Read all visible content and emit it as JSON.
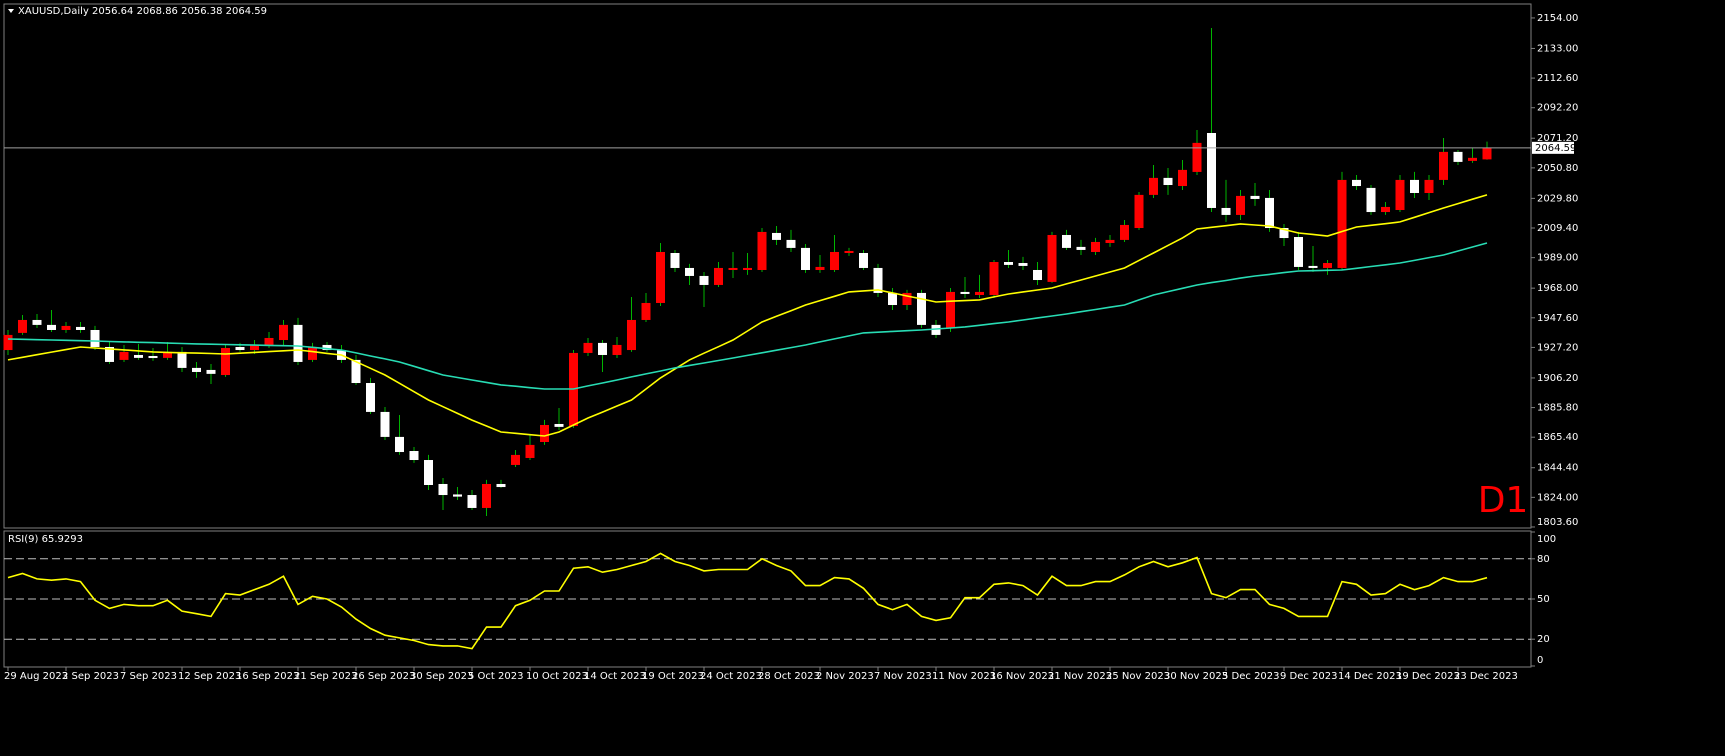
{
  "chart_data": [
    {
      "type": "candlestick",
      "title": "XAUUSD,Daily 2056.64 2068.86 2056.38 2064.59",
      "annotation": "D1",
      "categories": [
        "29 Aug 2023",
        null,
        null,
        null,
        "2 Sep 2023",
        null,
        null,
        null,
        "7 Sep 2023",
        null,
        null,
        null,
        "12 Sep 2023",
        null,
        null,
        null,
        "16 Sep 2023",
        null,
        null,
        null,
        "21 Sep 2023",
        null,
        null,
        null,
        "26 Sep 2023",
        null,
        null,
        null,
        "30 Sep 2023",
        null,
        null,
        null,
        "5 Oct 2023",
        null,
        null,
        null,
        "10 Oct 2023",
        null,
        null,
        null,
        "14 Oct 2023",
        null,
        null,
        null,
        "19 Oct 2023",
        null,
        null,
        null,
        "24 Oct 2023",
        null,
        null,
        null,
        "28 Oct 2023",
        null,
        null,
        null,
        "2 Nov 2023",
        null,
        null,
        null,
        "7 Nov 2023",
        null,
        null,
        null,
        "11 Nov 2023",
        null,
        null,
        null,
        "16 Nov 2023",
        null,
        null,
        null,
        "21 Nov 2023",
        null,
        null,
        null,
        "25 Nov 2023",
        null,
        null,
        null,
        "30 Nov 2023",
        null,
        null,
        null,
        "5 Dec 2023",
        null,
        null,
        null,
        "9 Dec 2023",
        null,
        null,
        null,
        "14 Dec 2023",
        null,
        null,
        null,
        "19 Dec 2023",
        null,
        null,
        null,
        "23 Dec 2023",
        null,
        null
      ],
      "open": [
        1925.4,
        1937.2,
        1946.1,
        1942.7,
        1939.2,
        1941.3,
        1939.2,
        1927.5,
        1918.6,
        1922.0,
        1921.3,
        1920.0,
        1924.1,
        1913.1,
        1911.7,
        1908.2,
        1927.5,
        1925.4,
        1928.9,
        1932.3,
        1942.7,
        1918.6,
        1928.9,
        1925.4,
        1918.6,
        1902.7,
        1882.8,
        1865.6,
        1855.9,
        1849.7,
        1833.2,
        1826.0,
        1825.6,
        1816.7,
        1833.2,
        1846.3,
        1851.1,
        1862.1,
        1874.5,
        1873.1,
        1923.4,
        1930.3,
        1922.0,
        1925.4,
        1946.1,
        1957.8,
        1992.2,
        1981.9,
        1976.4,
        1970.2,
        1980.5,
        1980.5,
        1980.5,
        2006.0,
        2001.2,
        1995.7,
        1980.5,
        1980.5,
        1992.2,
        1992.2,
        1981.9,
        1964.7,
        1956.4,
        1964.7,
        1942.7,
        1940.6,
        1965.4,
        1963.3,
        1963.3,
        1986.0,
        1985.3,
        1980.5,
        1972.3,
        2004.6,
        1996.4,
        1992.9,
        1999.1,
        2001.2,
        2009.4,
        2032.2,
        2043.9,
        2038.3,
        2048.0,
        2074.8,
        2023.2,
        2018.4,
        2031.5,
        2030.1,
        2009.4,
        2003.2,
        1983.3,
        1981.9,
        1981.9,
        2042.5,
        2037.0,
        2020.4,
        2021.8,
        2042.5,
        2033.5,
        2042.5,
        2061.8,
        2055.6,
        2056.64
      ],
      "high": [
        1939.2,
        1949.5,
        1950.2,
        1953.0,
        1944.7,
        1944.7,
        1942.0,
        1930.9,
        1928.9,
        1929.6,
        1926.8,
        1930.9,
        1927.5,
        1917.2,
        1915.8,
        1929.6,
        1930.3,
        1932.3,
        1937.8,
        1946.1,
        1947.5,
        1930.3,
        1930.9,
        1928.9,
        1922.0,
        1906.2,
        1886.2,
        1880.7,
        1858.7,
        1853.2,
        1837.3,
        1831.1,
        1829.1,
        1836.0,
        1836.0,
        1856.6,
        1866.9,
        1877.3,
        1885.5,
        1925.4,
        1933.7,
        1932.3,
        1934.4,
        1961.9,
        1964.7,
        1999.1,
        1994.3,
        1984.7,
        1979.1,
        1986.0,
        1992.9,
        1992.2,
        2009.4,
        2010.8,
        2008.1,
        1998.4,
        1990.8,
        2004.6,
        1995.7,
        1994.3,
        1984.7,
        1968.1,
        1966.8,
        1966.8,
        1946.1,
        1968.1,
        1975.7,
        1977.1,
        1987.4,
        1994.3,
        1989.5,
        1986.0,
        2006.7,
        2008.1,
        2001.2,
        2002.6,
        2004.6,
        2014.9,
        2034.2,
        2052.8,
        2050.7,
        2056.2,
        2076.9,
        2147.1,
        2042.5,
        2035.6,
        2040.4,
        2035.6,
        2012.2,
        2006.7,
        1997.0,
        1987.4,
        2048.0,
        2045.9,
        2039.0,
        2027.3,
        2045.9,
        2048.0,
        2045.9,
        2071.4,
        2063.1,
        2064.5,
        2068.86
      ],
      "low": [
        1922.0,
        1935.8,
        1940.6,
        1937.8,
        1937.2,
        1937.2,
        1925.4,
        1915.8,
        1917.2,
        1918.6,
        1917.9,
        1918.6,
        1910.3,
        1906.2,
        1902.0,
        1906.9,
        1924.1,
        1922.7,
        1926.8,
        1928.9,
        1915.1,
        1917.2,
        1924.1,
        1916.5,
        1901.4,
        1881.4,
        1863.5,
        1853.2,
        1847.7,
        1829.1,
        1815.3,
        1822.2,
        1815.3,
        1811.2,
        1830.5,
        1844.9,
        1849.7,
        1860.1,
        1870.4,
        1871.8,
        1921.3,
        1910.3,
        1919.9,
        1924.1,
        1944.7,
        1955.7,
        1979.1,
        1970.2,
        1955.0,
        1968.8,
        1975.0,
        1977.1,
        1979.1,
        1997.7,
        1992.9,
        1978.5,
        1978.5,
        1979.1,
        1990.2,
        1980.5,
        1961.9,
        1953.0,
        1953.0,
        1940.6,
        1933.7,
        1937.8,
        1961.2,
        1961.2,
        1961.2,
        1981.9,
        1980.5,
        1970.2,
        1971.6,
        1994.3,
        1990.8,
        1990.8,
        1996.4,
        1999.8,
        2008.1,
        2030.1,
        2032.2,
        2035.6,
        2045.9,
        2020.4,
        2013.6,
        2014.9,
        2024.6,
        2006.7,
        1997.0,
        1980.5,
        1979.1,
        1977.1,
        1980.5,
        2035.6,
        2018.4,
        2018.4,
        2020.4,
        2030.1,
        2028.7,
        2039.0,
        2052.8,
        2054.2,
        2056.38
      ],
      "close": [
        1935.8,
        1946.1,
        1942.7,
        1939.2,
        1942.0,
        1939.2,
        1927.5,
        1917.2,
        1924.1,
        1920.0,
        1919.9,
        1924.1,
        1913.1,
        1910.3,
        1909.0,
        1926.8,
        1925.4,
        1928.9,
        1933.7,
        1942.7,
        1917.2,
        1927.5,
        1925.4,
        1918.6,
        1902.7,
        1882.8,
        1865.6,
        1855.2,
        1849.7,
        1832.5,
        1825.6,
        1824.5,
        1816.7,
        1833.2,
        1831.1,
        1853.2,
        1860.1,
        1873.8,
        1872.5,
        1923.4,
        1930.3,
        1922.0,
        1928.9,
        1946.1,
        1957.8,
        1992.9,
        1981.9,
        1976.4,
        1970.2,
        1981.9,
        1981.9,
        1981.9,
        2006.7,
        2001.2,
        1995.7,
        1980.5,
        1982.6,
        1992.9,
        1993.6,
        1981.9,
        1964.7,
        1956.4,
        1964.7,
        1942.7,
        1935.8,
        1965.4,
        1964.0,
        1965.4,
        1986.0,
        1984.0,
        1983.3,
        1973.6,
        2004.6,
        1995.7,
        1994.3,
        1999.8,
        2001.2,
        2011.5,
        2032.2,
        2043.9,
        2039.0,
        2049.4,
        2068.0,
        2023.2,
        2018.4,
        2031.5,
        2029.4,
        2009.4,
        2002.5,
        1982.6,
        1981.9,
        1985.3,
        2042.5,
        2038.3,
        2020.4,
        2023.9,
        2042.5,
        2033.5,
        2042.5,
        2061.8,
        2054.9,
        2057.7,
        2064.59
      ],
      "up_color": "#ff0000",
      "down_color": "#ffffff",
      "wick_color": "#00b400",
      "series": [
        {
          "color": "#ffff00",
          "values": [
            1918.6,
            1920.4,
            1922.2,
            1924.0,
            1925.7,
            1927.5,
            1926.8,
            1926.2,
            1925.5,
            1924.8,
            1924.1,
            1923.8,
            1923.5,
            1923.3,
            1923.0,
            1922.7,
            1923.2,
            1923.8,
            1924.3,
            1924.9,
            1925.4,
            1924.3,
            1923.1,
            1922.0,
            1917.4,
            1912.8,
            1908.2,
            1902.5,
            1896.7,
            1891.0,
            1886.4,
            1881.8,
            1877.2,
            1873.1,
            1869.0,
            1868.1,
            1867.1,
            1866.2,
            1869.0,
            1873.8,
            1878.6,
            1882.7,
            1886.9,
            1891.0,
            1898.6,
            1906.2,
            1912.4,
            1918.6,
            1923.2,
            1927.7,
            1932.3,
            1938.5,
            1944.7,
            1948.6,
            1952.5,
            1956.4,
            1959.4,
            1962.4,
            1965.4,
            1966.1,
            1966.8,
            1964.7,
            1962.6,
            1960.6,
            1958.5,
            1959.0,
            1959.4,
            1959.9,
            1962.0,
            1964.0,
            1965.4,
            1966.7,
            1968.1,
            1970.9,
            1973.6,
            1976.4,
            1979.1,
            1981.9,
            1987.1,
            1992.2,
            1997.4,
            2002.6,
            2008.7,
            2009.9,
            2011.0,
            2012.2,
            2011.5,
            2010.8,
            2008.4,
            2006.0,
            2005.0,
            2003.9,
            2007.0,
            2010.1,
            2011.3,
            2012.4,
            2013.6,
            2016.8,
            2020.0,
            2023.2,
            2026.2,
            2029.2,
            2032.2
          ]
        },
        {
          "color": "#28dcb4",
          "values": [
            1933.0,
            1932.8,
            1932.5,
            1932.3,
            1932.1,
            1931.8,
            1931.6,
            1931.3,
            1931.0,
            1930.7,
            1930.5,
            1930.2,
            1929.9,
            1929.6,
            1929.4,
            1929.2,
            1929.0,
            1928.8,
            1928.6,
            1928.4,
            1928.2,
            1927.3,
            1926.3,
            1925.4,
            1923.4,
            1921.3,
            1919.3,
            1917.2,
            1914.2,
            1911.2,
            1908.2,
            1906.5,
            1904.8,
            1903.1,
            1901.4,
            1900.5,
            1899.5,
            1898.6,
            1898.6,
            1898.6,
            1900.7,
            1902.7,
            1904.8,
            1906.9,
            1909.0,
            1911.0,
            1913.1,
            1914.8,
            1916.5,
            1918.2,
            1919.9,
            1921.7,
            1923.5,
            1925.3,
            1927.1,
            1928.9,
            1931.0,
            1933.1,
            1935.1,
            1937.2,
            1937.7,
            1938.2,
            1938.7,
            1939.2,
            1939.9,
            1940.6,
            1941.3,
            1942.4,
            1943.6,
            1944.7,
            1946.1,
            1947.5,
            1948.8,
            1950.2,
            1951.8,
            1953.3,
            1954.9,
            1956.4,
            1959.9,
            1963.3,
            1965.6,
            1967.9,
            1970.2,
            1971.8,
            1973.3,
            1974.9,
            1976.4,
            1977.5,
            1978.7,
            1979.8,
            1980.0,
            1980.3,
            1980.5,
            1981.7,
            1982.9,
            1984.1,
            1985.3,
            1987.1,
            1989.0,
            1990.8,
            1993.6,
            1996.3,
            1999.1
          ]
        }
      ],
      "last_price": 2064.59,
      "ylim": [
        1802.9,
        2163.6
      ],
      "yticks": [
        {
          "value": 2154,
          "label": "2154.00"
        },
        {
          "value": 2133,
          "label": "2133.00"
        },
        {
          "value": 2112.6,
          "label": "2112.60"
        },
        {
          "value": 2092.2,
          "label": "2092.20"
        },
        {
          "value": 2071.2,
          "label": "2071.20"
        },
        {
          "value": 2050.8,
          "label": "2050.80"
        },
        {
          "value": 2029.8,
          "label": "2029.80"
        },
        {
          "value": 2009.4,
          "label": "2009.40"
        },
        {
          "value": 1989,
          "label": "1989.00"
        },
        {
          "value": 1968,
          "label": "1968.00"
        },
        {
          "value": 1947.6,
          "label": "1947.60"
        },
        {
          "value": 1927.2,
          "label": "1927.20"
        },
        {
          "value": 1906.2,
          "label": "1906.20"
        },
        {
          "value": 1885.8,
          "label": "1885.80"
        },
        {
          "value": 1865.4,
          "label": "1865.40"
        },
        {
          "value": 1844.4,
          "label": "1844.40"
        },
        {
          "value": 1824,
          "label": "1824.00"
        },
        {
          "value": 1803.6,
          "label": "1803.60"
        }
      ]
    },
    {
      "type": "line",
      "title": "RSI(9) 65.9293",
      "series": [
        {
          "color": "#ffff00",
          "values": [
            66,
            69,
            65,
            64,
            65,
            63,
            49,
            43,
            46,
            45,
            45,
            49,
            41,
            39,
            37,
            54,
            53,
            57,
            61,
            67,
            46,
            52,
            50,
            44,
            35,
            28,
            23,
            21,
            19,
            16,
            15,
            15,
            13,
            29,
            29,
            45,
            49,
            56,
            56,
            73,
            74,
            70,
            72,
            75,
            78,
            84,
            78,
            75,
            71,
            72,
            72,
            72,
            80,
            75,
            71,
            60,
            60,
            66,
            65,
            58,
            46,
            42,
            46,
            37,
            34,
            36,
            51,
            51,
            61,
            62,
            60,
            53,
            67,
            60,
            60,
            63,
            63,
            68,
            74,
            78,
            74,
            77,
            81,
            54,
            51,
            57,
            57,
            46,
            43,
            37,
            37,
            37,
            63,
            61,
            53,
            54,
            61,
            57,
            60,
            66,
            63,
            63,
            65.9293
          ]
        }
      ],
      "ylim": [
        0,
        100
      ],
      "yticks": [
        100,
        80,
        50,
        20,
        0
      ],
      "levels": [
        20,
        50,
        80
      ]
    }
  ]
}
